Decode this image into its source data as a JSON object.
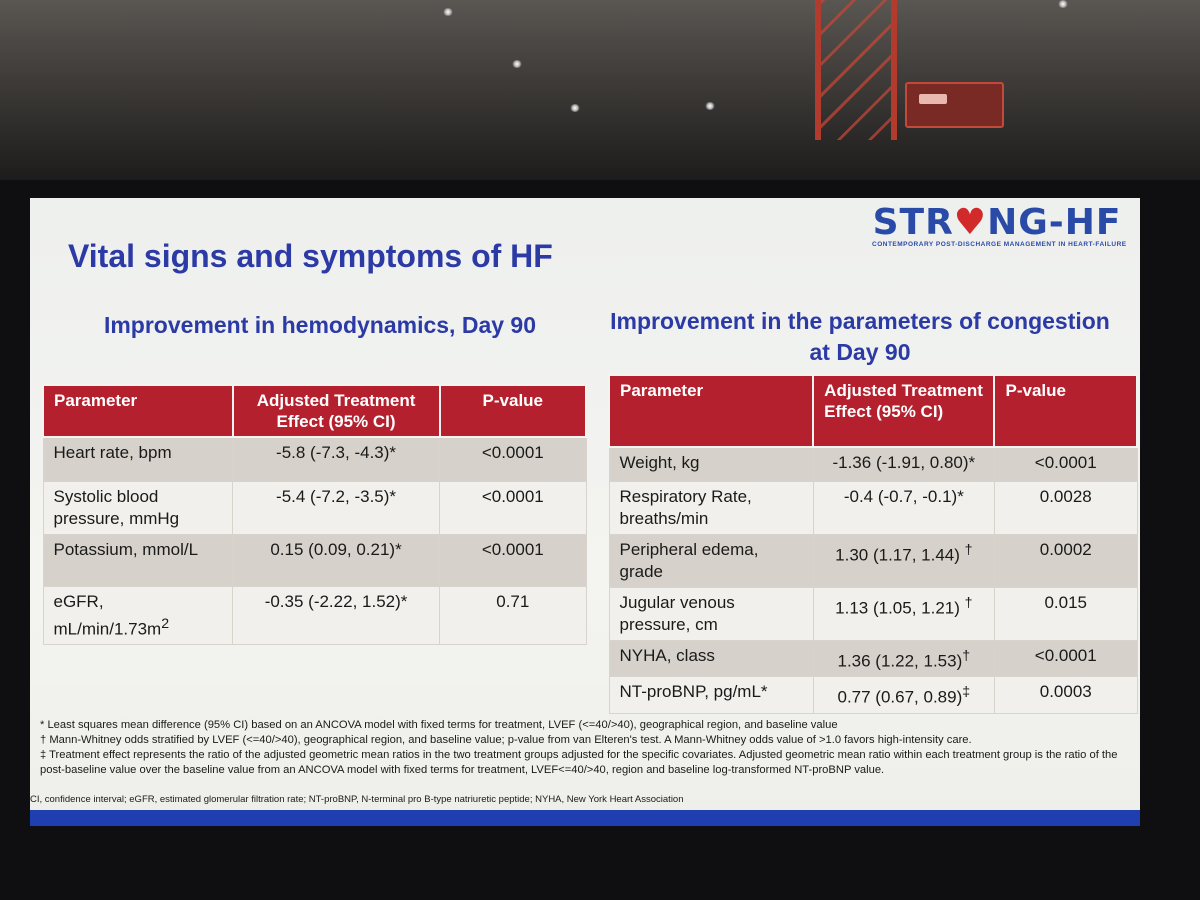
{
  "logo": {
    "text_before": "STR",
    "heart": "♥",
    "text_after": "NG-HF",
    "subtitle": "CONTEMPORARY POST-DISCHARGE MANAGEMENT IN HEART-FAILURE"
  },
  "slide_title": "Vital signs and symptoms of HF",
  "left_section": {
    "title": "Improvement in hemodynamics, Day 90",
    "headers": [
      "Parameter",
      "Adjusted Treatment Effect (95% CI)",
      "P-value"
    ],
    "rows": [
      {
        "parameter": "Heart rate, bpm",
        "effect": "-5.8 (-7.3, -4.3)*",
        "p": "<0.0001"
      },
      {
        "parameter": "Systolic blood pressure, mmHg",
        "effect": "-5.4 (-7.2, -3.5)*",
        "p": "<0.0001"
      },
      {
        "parameter": "Potassium, mmol/L",
        "effect": "0.15 (0.09, 0.21)*",
        "p": "<0.0001"
      },
      {
        "parameter": "eGFR, mL/min/1.73m",
        "parameter_sup": "2",
        "effect": "-0.35 (-2.22, 1.52)*",
        "p": "0.71"
      }
    ]
  },
  "right_section": {
    "title": "Improvement in the parameters of congestion at Day 90",
    "headers": [
      "Parameter",
      "Adjusted Treatment Effect (95% CI)",
      "P-value"
    ],
    "rows": [
      {
        "parameter": "Weight, kg",
        "effect": "-1.36 (-1.91, 0.80)*",
        "p": "<0.0001"
      },
      {
        "parameter": "Respiratory Rate, breaths/min",
        "effect": "-0.4 (-0.7, -0.1)*",
        "p": "0.0028"
      },
      {
        "parameter": "Peripheral edema, grade",
        "effect": "1.30 (1.17, 1.44)",
        "effect_sup": "†",
        "p": "0.0002"
      },
      {
        "parameter": "Jugular venous pressure, cm",
        "effect": "1.13 (1.05, 1.21)",
        "effect_sup": "†",
        "p": "0.015"
      },
      {
        "parameter": "NYHA, class",
        "effect": "1.36 (1.22, 1.53)",
        "effect_sup": "†",
        "p": "<0.0001"
      },
      {
        "parameter": "NT-proBNP, pg/mL*",
        "effect": "0.77 (0.67, 0.89)",
        "effect_sup": "‡",
        "p": "0.0003"
      }
    ]
  },
  "footnotes": [
    "*  Least squares mean difference (95% CI) based on an ANCOVA model with fixed terms for treatment, LVEF (<=40/>40), geographical region, and baseline value",
    "† Mann-Whitney odds stratified by LVEF (<=40/>40), geographical region, and baseline value; p-value from van Elteren's test. A Mann-Whitney odds value of >1.0 favors high-intensity care.",
    "‡ Treatment effect represents the ratio of the adjusted geometric mean ratios in the two treatment groups adjusted for the specific covariates. Adjusted geometric mean ratio within each treatment group is the ratio of the post-baseline value over the baseline value from an ANCOVA model with fixed terms for treatment, LVEF<=40/>40, region and baseline log-transformed NT-proBNP value."
  ],
  "abbreviations": "CI, confidence interval; eGFR, estimated glomerular filtration rate; NT-proBNP, N-terminal pro B-type natriuretic peptide; NYHA, New York Heart Association",
  "colors": {
    "title_blue": "#2c3aa6",
    "header_red": "#b5202e",
    "bar_blue": "#1f3fb0",
    "heart_red": "#d22a2a"
  }
}
